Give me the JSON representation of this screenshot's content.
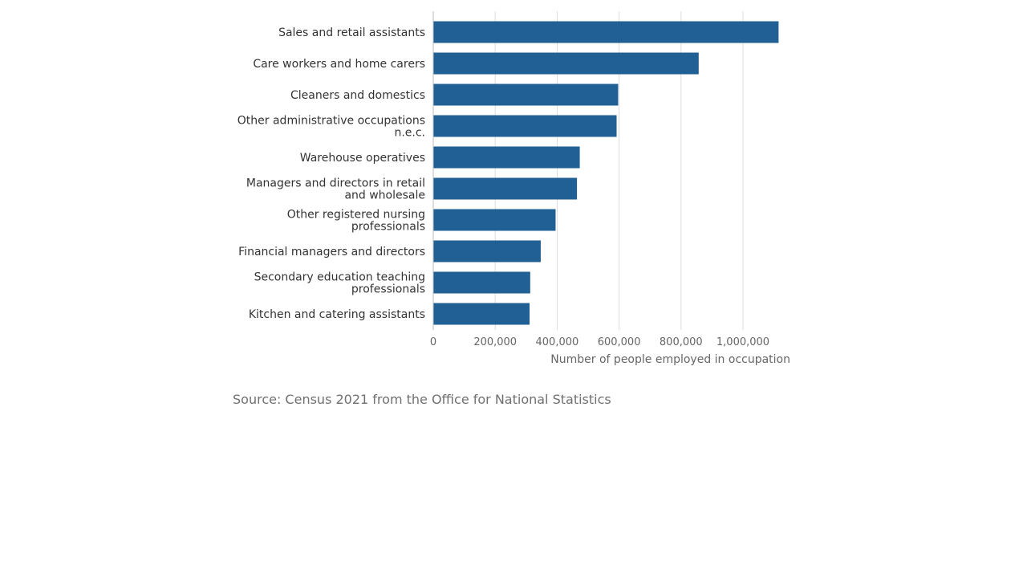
{
  "chart_data": {
    "type": "bar",
    "orientation": "horizontal",
    "categories": [
      "Sales and retail assistants",
      "Care workers and home carers",
      "Cleaners and domestics",
      "Other administrative occupations n.e.c.",
      "Warehouse operatives",
      "Managers and directors in retail and wholesale",
      "Other registered nursing professionals",
      "Financial managers and directors",
      "Secondary education teaching professionals",
      "Kitchen and catering assistants"
    ],
    "category_lines": [
      [
        "Sales and retail assistants"
      ],
      [
        "Care workers and home carers"
      ],
      [
        "Cleaners and domestics"
      ],
      [
        "Other administrative occupations",
        "n.e.c."
      ],
      [
        "Warehouse operatives"
      ],
      [
        "Managers and directors in retail",
        "and wholesale"
      ],
      [
        "Other registered nursing",
        "professionals"
      ],
      [
        "Financial managers and directors"
      ],
      [
        "Secondary education teaching",
        "professionals"
      ],
      [
        "Kitchen and catering assistants"
      ]
    ],
    "values": [
      1115000,
      857000,
      597000,
      592000,
      473000,
      464000,
      395000,
      347000,
      313000,
      311000
    ],
    "xlabel": "Number of people employed in occupation",
    "xlim": [
      0,
      1150000
    ],
    "x_ticks": [
      0,
      200000,
      400000,
      600000,
      800000,
      1000000
    ],
    "x_tick_labels": [
      "0",
      "200,000",
      "400,000",
      "600,000",
      "800,000",
      "1,000,000"
    ],
    "grid": true,
    "bar_color": "#206095",
    "grid_color": "#dddddd"
  },
  "footer": {
    "source": "Source: Census 2021 from the Office for National Statistics"
  }
}
